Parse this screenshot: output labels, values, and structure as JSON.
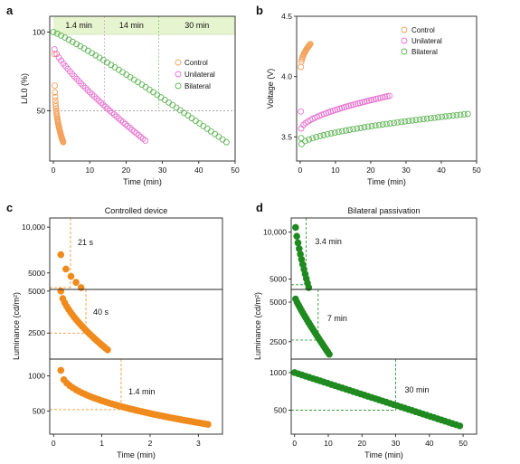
{
  "colors": {
    "control": "#f2a25c",
    "unilateral": "#e774cf",
    "bilateral": "#5fb554",
    "orange_fill": "#ef8a1c",
    "green_fill": "#1f8a1f",
    "green_title": "#2f8a2f",
    "band": "#e6f4cf",
    "guide_gray": "#888888"
  },
  "chart_data": [
    {
      "panel": "a",
      "type": "scatter",
      "xlabel": "Time (min)",
      "ylabel": "L/L0 (%)",
      "xlim": [
        -1,
        50
      ],
      "ylim": [
        18,
        110
      ],
      "xticks": [
        0,
        10,
        20,
        30,
        40,
        50
      ],
      "yticks": [
        50,
        100
      ],
      "legend": [
        "Control",
        "Unilateral",
        "Bilateral"
      ],
      "legend_position": "right",
      "bands": [
        {
          "label": "1.4 min",
          "from": 0,
          "to": 14
        },
        {
          "label": "14 min",
          "from": 14,
          "to": 29
        },
        {
          "label": "30 min",
          "from": 29,
          "to": 50
        }
      ],
      "reference_line": 50,
      "series": [
        {
          "name": "Control",
          "x_start": 0.3,
          "x_end": 2.7,
          "y_start": 86,
          "y_end": 30,
          "n": 40,
          "shape": 0.28
        },
        {
          "name": "Unilateral",
          "x_start": 0.3,
          "x_end": 25.3,
          "y_start": 89,
          "y_end": 31,
          "n": 42,
          "shape": 0.8
        },
        {
          "name": "Bilateral",
          "x_start": 0,
          "x_end": 47.6,
          "y_start": 100,
          "y_end": 30,
          "n": 46,
          "shape": 1.1
        }
      ]
    },
    {
      "panel": "b",
      "type": "scatter",
      "xlabel": "Time (min)",
      "ylabel": "Voltage (V)",
      "xlim": [
        -1,
        50
      ],
      "ylim": [
        3.3,
        4.5
      ],
      "xticks": [
        0,
        10,
        20,
        30,
        40,
        50
      ],
      "yticks": [
        3.5,
        4.0,
        4.5
      ],
      "legend": [
        "Control",
        "Unilateral",
        "Bilateral"
      ],
      "legend_position": "top-right",
      "series": [
        {
          "name": "Control",
          "x_start": 0.2,
          "x_end": 2.9,
          "y_start": 4.08,
          "y_end": 4.27,
          "n": 20,
          "shape": 0.5
        },
        {
          "name": "Unilateral",
          "x_start": 0.3,
          "x_end": 25.3,
          "y_start": 3.57,
          "y_end": 3.84,
          "n": 40,
          "shape": 0.6,
          "outlier": [
            0.2,
            3.71
          ]
        },
        {
          "name": "Bilateral",
          "x_start": 0.4,
          "x_end": 47.5,
          "y_start": 3.44,
          "y_end": 3.69,
          "n": 46,
          "shape": 0.6,
          "outlier": [
            0.3,
            3.49
          ]
        }
      ]
    },
    {
      "panel": "c",
      "type": "scatter",
      "title": "Controlled device",
      "xlabel": "Time (min)",
      "ylabel": "Luminance (cd/m²)",
      "xlim": [
        -0.08,
        3.5
      ],
      "xticks": [
        0,
        1,
        2,
        3
      ],
      "subplots": [
        {
          "ylim": [
            3200,
            11000
          ],
          "yticks": [
            5000,
            10000
          ],
          "yticklabels": [
            "5000",
            "10,000"
          ],
          "annotation": "21 s",
          "half_time": 0.35,
          "half_value": 3400,
          "series": {
            "x_start": 0.15,
            "x_end": 0.57,
            "y_start": 7000,
            "y_end": 3400,
            "n": 5,
            "shape": 0.6
          }
        },
        {
          "ylim": [
            950,
            5100
          ],
          "yticks": [
            2500,
            5000
          ],
          "yticklabels": [
            "2500",
            "5000"
          ],
          "annotation": "40 s",
          "half_time": 0.67,
          "half_value": 2500,
          "series": {
            "x_start": 0.15,
            "x_end": 1.12,
            "y_start": 5000,
            "y_end": 1500,
            "n": 25,
            "shape": 0.65
          }
        },
        {
          "ylim": [
            170,
            1240
          ],
          "yticks": [
            500,
            1000
          ],
          "yticklabels": [
            "500",
            "1000"
          ],
          "annotation": "1.4 min",
          "half_time": 1.4,
          "half_value": 520,
          "series": {
            "x_start": 0.15,
            "x_end": 3.2,
            "y_start": 1080,
            "y_end": 310,
            "n": 50,
            "shape": 0.45
          }
        }
      ]
    },
    {
      "panel": "d",
      "type": "scatter",
      "title": "Bilateral passivation",
      "xlabel": "Time (min)",
      "ylabel": "Luminance (cd/m²)",
      "xlim": [
        -1,
        54
      ],
      "xticks": [
        0,
        10,
        20,
        30,
        40,
        50
      ],
      "subplots": [
        {
          "ylim": [
            3900,
            11500
          ],
          "yticks": [
            5000,
            10000
          ],
          "yticklabels": [
            "5000",
            "10,000"
          ],
          "annotation": "3.4 min",
          "half_time": 3.4,
          "half_value": 4400,
          "series": {
            "x_start": 0.3,
            "x_end": 4.2,
            "y_start": 10500,
            "y_end": 4100,
            "n": 12,
            "shape": 0.8
          }
        },
        {
          "ylim": [
            1400,
            5800
          ],
          "yticks": [
            2500,
            5000
          ],
          "yticklabels": [
            "2500",
            "5000"
          ],
          "annotation": "7 min",
          "half_time": 7,
          "half_value": 2600,
          "series": {
            "x_start": 0.3,
            "x_end": 10.3,
            "y_start": 5200,
            "y_end": 1700,
            "n": 24,
            "shape": 0.9
          }
        },
        {
          "ylim": [
            180,
            1180
          ],
          "yticks": [
            500,
            1000
          ],
          "yticklabels": [
            "500",
            "1000"
          ],
          "annotation": "30 min",
          "half_time": 30,
          "half_value": 500,
          "series": {
            "x_start": 0,
            "x_end": 49,
            "y_start": 1000,
            "y_end": 290,
            "n": 46,
            "shape": 1.0
          }
        }
      ]
    }
  ]
}
